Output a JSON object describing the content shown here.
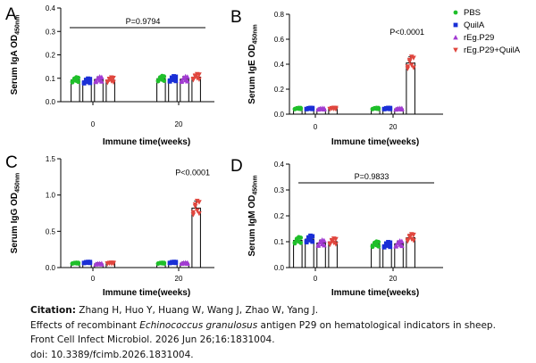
{
  "legend": {
    "entries": [
      {
        "name": "PBS",
        "color": "#1fbf2a",
        "marker": "circle"
      },
      {
        "name": "QuilA",
        "color": "#1a2fd6",
        "marker": "square"
      },
      {
        "name": "rEg.P29",
        "color": "#a23bd2",
        "marker": "triangle-up"
      },
      {
        "name": "rEg.P29+QuilA",
        "color": "#e0463e",
        "marker": "triangle-down"
      }
    ]
  },
  "chart_data": [
    {
      "panel": "A",
      "type": "bar",
      "ylabel": "Serum IgA OD",
      "ylabel_sub": "450nm",
      "xlabel": "Immune time(weeks)",
      "categories": [
        "0",
        "20"
      ],
      "ylim": [
        0,
        0.4
      ],
      "yticks": [
        "0.0",
        "0.1",
        "0.2",
        "0.3",
        "0.4"
      ],
      "series": [
        {
          "name": "PBS",
          "values": [
            0.093,
            0.098
          ]
        },
        {
          "name": "QuilA",
          "values": [
            0.088,
            0.097
          ]
        },
        {
          "name": "rEg.P29",
          "values": [
            0.095,
            0.096
          ]
        },
        {
          "name": "rEg.P29+QuilA",
          "values": [
            0.092,
            0.105
          ]
        }
      ],
      "annotation": {
        "text": "P=0.9794",
        "type": "bracket"
      }
    },
    {
      "panel": "B",
      "type": "bar",
      "ylabel": "Serum IgE OD",
      "ylabel_sub": "450nm",
      "xlabel": "Immune time(weeks)",
      "categories": [
        "0",
        "20"
      ],
      "ylim": [
        0,
        0.8
      ],
      "yticks": [
        "0.0",
        "0.2",
        "0.4",
        "0.6",
        "0.8"
      ],
      "series": [
        {
          "name": "PBS",
          "values": [
            0.045,
            0.045
          ]
        },
        {
          "name": "QuilA",
          "values": [
            0.045,
            0.045
          ]
        },
        {
          "name": "rEg.P29",
          "values": [
            0.042,
            0.042
          ]
        },
        {
          "name": "rEg.P29+QuilA",
          "values": [
            0.045,
            0.41
          ]
        }
      ],
      "annotation": {
        "text": "P<0.0001",
        "type": "label"
      }
    },
    {
      "panel": "C",
      "type": "bar",
      "ylabel": "Serum IgG OD",
      "ylabel_sub": "450nm",
      "xlabel": "Immune time(weeks)",
      "categories": [
        "0",
        "20"
      ],
      "ylim": [
        0,
        1.5
      ],
      "yticks": [
        "0.0",
        "0.5",
        "1.0",
        "1.5"
      ],
      "series": [
        {
          "name": "PBS",
          "values": [
            0.06,
            0.06
          ]
        },
        {
          "name": "QuilA",
          "values": [
            0.07,
            0.07
          ]
        },
        {
          "name": "rEg.P29",
          "values": [
            0.05,
            0.06
          ]
        },
        {
          "name": "rEg.P29+QuilA",
          "values": [
            0.06,
            0.82
          ]
        }
      ],
      "annotation": {
        "text": "P<0.0001",
        "type": "label"
      }
    },
    {
      "panel": "D",
      "type": "bar",
      "ylabel": "Serum IgM OD",
      "ylabel_sub": "450nm",
      "xlabel": "Immune time(weeks)",
      "categories": [
        "0",
        "20"
      ],
      "ylim": [
        0,
        0.4
      ],
      "yticks": [
        "0.0",
        "0.1",
        "0.2",
        "0.3",
        "0.4"
      ],
      "series": [
        {
          "name": "PBS",
          "values": [
            0.105,
            0.09
          ]
        },
        {
          "name": "QuilA",
          "values": [
            0.11,
            0.088
          ]
        },
        {
          "name": "rEg.P29",
          "values": [
            0.095,
            0.092
          ]
        },
        {
          "name": "rEg.P29+QuilA",
          "values": [
            0.1,
            0.115
          ]
        }
      ],
      "annotation": {
        "text": "P=0.9833",
        "type": "bracket"
      }
    }
  ],
  "citation": {
    "label": "Citation:",
    "authors": "Zhang H, Huo Y, Huang W, Wang J, Zhao W, Yang J.",
    "title_before": "Effects of recombinant ",
    "title_species": "Echinococcus granulosus",
    "title_after": " antigen P29 on hematological indicators in sheep.",
    "journal": "Front Cell Infect Microbiol. 2026 Jun 26;16:1831004.",
    "doi": "doi: 10.3389/fcimb.2026.1831004."
  }
}
